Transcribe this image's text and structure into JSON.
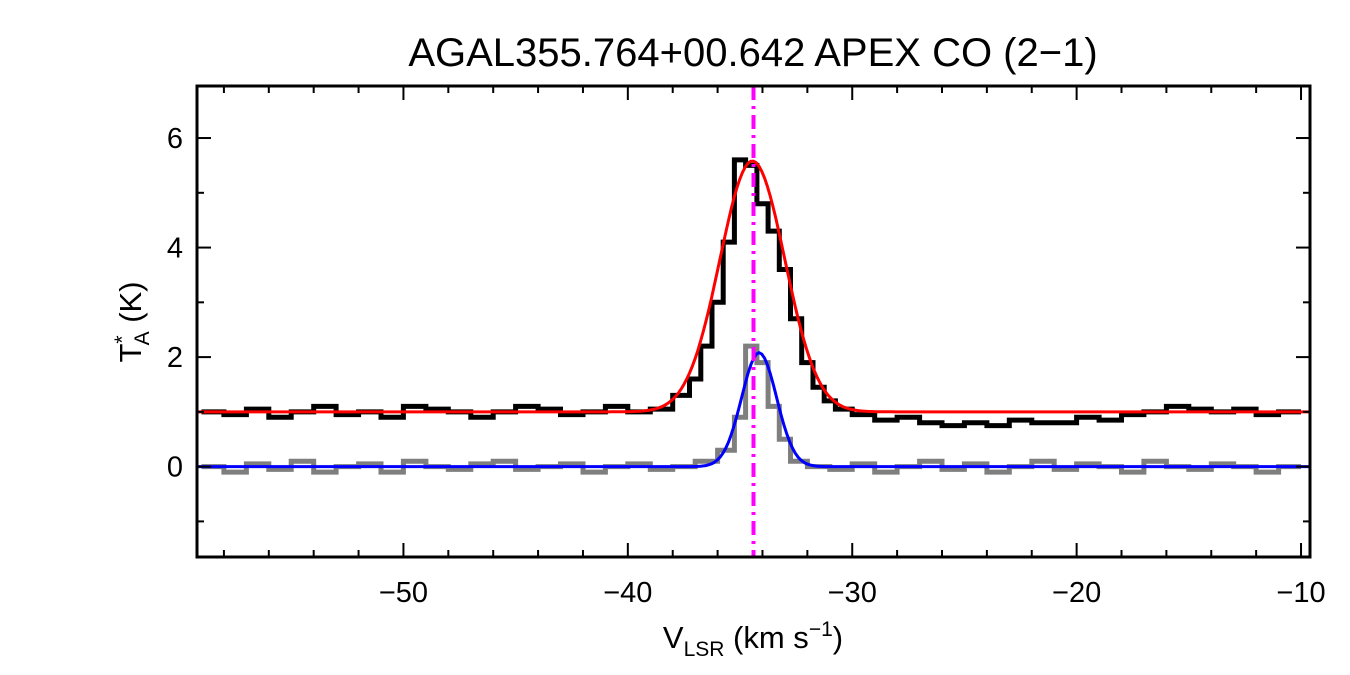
{
  "chart_data": {
    "type": "line",
    "title": "AGAL355.764+00.642  APEX CO (2−1)",
    "xlabel": {
      "main": "V",
      "sub": "LSR",
      "units": " (km s",
      "sup": "−1",
      "close": ")"
    },
    "ylabel": {
      "main": "T",
      "sup": "*",
      "sub": "A",
      "units": " (K)"
    },
    "xlim": [
      -59.2,
      -9.6
    ],
    "ylim": [
      -1.65,
      6.95
    ],
    "x_ticks": [
      -50,
      -40,
      -30,
      -20,
      -10
    ],
    "x_tick_labels": [
      "−50",
      "−40",
      "−30",
      "−20",
      "−10"
    ],
    "y_ticks": [
      0,
      2,
      4,
      6
    ],
    "y_tick_labels": [
      "0",
      "2",
      "4",
      "6"
    ],
    "grid": false,
    "legend": "none",
    "colors": {
      "black_spectrum": "#000000",
      "gray_spectrum": "#7f7f7f",
      "red_fit": "#ff0000",
      "blue_fit": "#0000ff",
      "velocity_marker": "#ff00ff"
    },
    "vertical_marker_x": -34.4,
    "series": [
      {
        "style": "histogram",
        "color": "#000000",
        "x": [
          -58.5,
          -57.5,
          -56.5,
          -55.5,
          -54.5,
          -53.5,
          -52.5,
          -51.5,
          -50.5,
          -49.5,
          -48.5,
          -47.5,
          -46.5,
          -45.5,
          -44.5,
          -43.5,
          -42.5,
          -41.5,
          -40.5,
          -39.5,
          -38.5,
          -37.5,
          -37.0,
          -36.5,
          -36.0,
          -35.5,
          -35.0,
          -34.5,
          -34.0,
          -33.5,
          -33.0,
          -32.5,
          -32.0,
          -31.5,
          -31.0,
          -30.5,
          -29.5,
          -28.5,
          -27.5,
          -26.5,
          -25.5,
          -24.5,
          -23.5,
          -22.5,
          -21.5,
          -20.5,
          -19.5,
          -18.5,
          -17.5,
          -16.5,
          -15.5,
          -14.5,
          -13.5,
          -12.5,
          -11.5,
          -10.5
        ],
        "y": [
          1.0,
          0.95,
          1.05,
          0.9,
          1.0,
          1.1,
          0.95,
          1.0,
          0.9,
          1.1,
          1.05,
          1.0,
          0.9,
          1.0,
          1.1,
          1.05,
          0.95,
          1.0,
          1.1,
          1.0,
          1.05,
          1.3,
          1.6,
          2.2,
          3.0,
          4.1,
          5.6,
          5.5,
          4.8,
          4.3,
          3.6,
          2.7,
          1.9,
          1.45,
          1.2,
          1.05,
          0.95,
          0.85,
          0.9,
          0.8,
          0.75,
          0.8,
          0.75,
          0.85,
          0.8,
          0.8,
          0.9,
          0.85,
          0.95,
          1.0,
          1.1,
          1.05,
          1.0,
          1.05,
          0.95,
          1.0
        ]
      },
      {
        "style": "histogram",
        "color": "#7f7f7f",
        "x": [
          -58.5,
          -57.5,
          -56.5,
          -55.5,
          -54.5,
          -53.5,
          -52.5,
          -51.5,
          -50.5,
          -49.5,
          -48.5,
          -47.5,
          -46.5,
          -45.5,
          -44.5,
          -43.5,
          -42.5,
          -41.5,
          -40.5,
          -39.5,
          -38.5,
          -37.5,
          -36.5,
          -35.5,
          -35.0,
          -34.5,
          -34.0,
          -33.5,
          -33.0,
          -32.5,
          -31.5,
          -30.5,
          -29.5,
          -28.5,
          -27.5,
          -26.5,
          -25.5,
          -24.5,
          -23.5,
          -22.5,
          -21.5,
          -20.5,
          -19.5,
          -18.5,
          -17.5,
          -16.5,
          -15.5,
          -14.5,
          -13.5,
          -12.5,
          -11.5,
          -10.5
        ],
        "y": [
          0.0,
          -0.1,
          0.05,
          -0.05,
          0.1,
          -0.1,
          0.0,
          0.05,
          -0.1,
          0.1,
          0.0,
          -0.05,
          0.05,
          0.1,
          -0.05,
          0.0,
          0.05,
          -0.1,
          0.0,
          0.05,
          -0.05,
          0.0,
          0.1,
          0.3,
          0.9,
          2.2,
          1.9,
          1.1,
          0.5,
          0.1,
          0.0,
          -0.05,
          0.05,
          -0.1,
          0.0,
          0.1,
          -0.05,
          0.05,
          -0.1,
          0.0,
          0.1,
          -0.05,
          0.05,
          0.0,
          -0.1,
          0.1,
          0.0,
          -0.05,
          0.05,
          0.0,
          -0.1,
          0.0
        ]
      },
      {
        "style": "gaussian_fit",
        "color": "#ff0000",
        "baseline": 1.0,
        "amplitude": 4.58,
        "center": -34.45,
        "sigma": 1.45
      },
      {
        "style": "gaussian_fit",
        "color": "#0000ff",
        "baseline": 0.0,
        "amplitude": 2.08,
        "center": -34.15,
        "sigma": 0.78
      }
    ]
  }
}
